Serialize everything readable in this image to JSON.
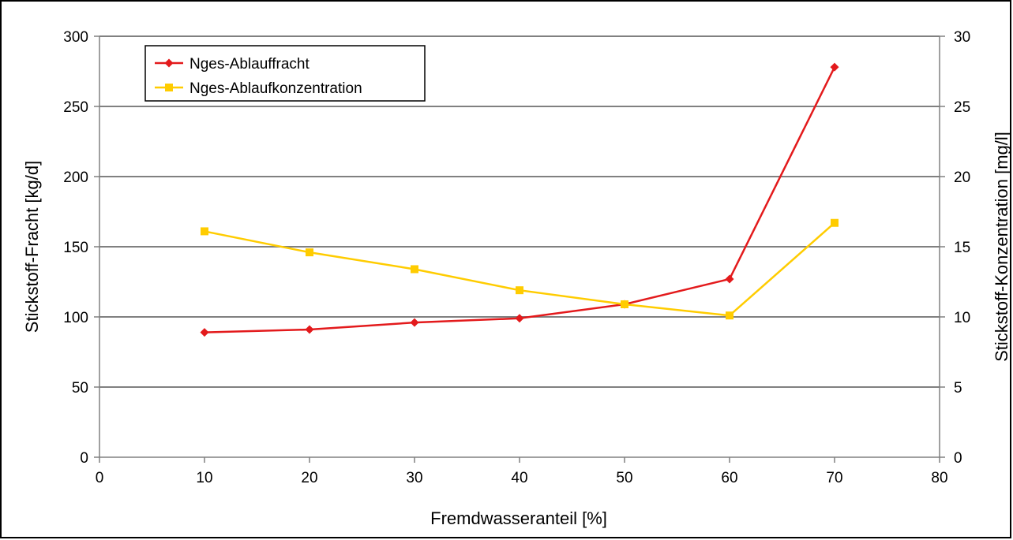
{
  "chart_data": {
    "type": "line",
    "title": "",
    "xlabel": "Fremdwasseranteil [%]",
    "ylabel_left": "Stickstoff-Fracht [kg/d]",
    "ylabel_right": "Stickstoff-Konzentration [mg/l]",
    "xlim": [
      0,
      80
    ],
    "x_ticks": [
      "0",
      "10",
      "20",
      "30",
      "40",
      "50",
      "60",
      "70",
      "80"
    ],
    "ylim_left": [
      0,
      300
    ],
    "y_ticks_left": [
      "0",
      "50",
      "100",
      "150",
      "200",
      "250",
      "300"
    ],
    "ylim_right": [
      0,
      30
    ],
    "y_ticks_right": [
      "0",
      "5",
      "10",
      "15",
      "20",
      "25",
      "30"
    ],
    "grid": "horizontal",
    "legend_position": "top-left",
    "series": [
      {
        "name": "Nges-Ablauffracht",
        "axis": "left",
        "color": "#e31a1c",
        "marker": "diamond",
        "x": [
          10,
          20,
          30,
          40,
          50,
          60,
          70
        ],
        "y": [
          89,
          91,
          96,
          99,
          109,
          127,
          278
        ]
      },
      {
        "name": "Nges-Ablaufkonzentration",
        "axis": "right",
        "color": "#ffcc00",
        "marker": "square",
        "x": [
          10,
          20,
          30,
          40,
          50,
          60,
          70
        ],
        "y": [
          16.1,
          14.6,
          13.4,
          11.9,
          10.9,
          10.1,
          16.7
        ]
      }
    ]
  }
}
